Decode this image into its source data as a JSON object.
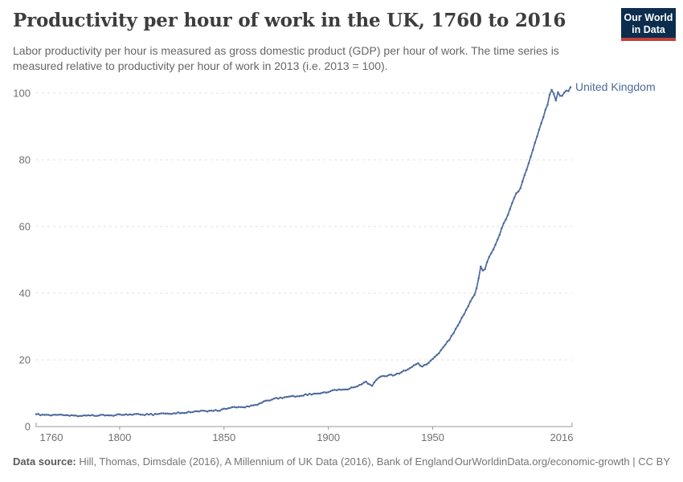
{
  "header": {
    "title": "Productivity per hour of work in the UK, 1760 to 2016",
    "logo_line1": "Our World",
    "logo_line2": "in Data"
  },
  "subtitle": "Labor productivity per hour is measured as gross domestic product (GDP) per hour of work. The time series is measured relative to productivity per hour of work in 2013 (i.e. 2013 = 100).",
  "chart_data": {
    "type": "line",
    "title": "Productivity per hour of work in the UK, 1760 to 2016",
    "xlabel": "",
    "ylabel": "",
    "xlim": [
      1760,
      2016
    ],
    "ylim": [
      0,
      100
    ],
    "x_ticks": [
      1760,
      1800,
      1850,
      1900,
      1950,
      2016
    ],
    "y_ticks": [
      0,
      20,
      40,
      60,
      80,
      100
    ],
    "grid": "horizontal-dashed",
    "legend": "end-of-line-label",
    "series": [
      {
        "name": "United Kingdom",
        "color": "#4C6A9C",
        "points": [
          [
            1760,
            3.7
          ],
          [
            1763,
            3.6
          ],
          [
            1766,
            3.5
          ],
          [
            1770,
            3.5
          ],
          [
            1774,
            3.4
          ],
          [
            1778,
            3.3
          ],
          [
            1782,
            3.2
          ],
          [
            1786,
            3.3
          ],
          [
            1790,
            3.3
          ],
          [
            1794,
            3.4
          ],
          [
            1798,
            3.4
          ],
          [
            1802,
            3.5
          ],
          [
            1806,
            3.5
          ],
          [
            1810,
            3.6
          ],
          [
            1814,
            3.6
          ],
          [
            1818,
            3.7
          ],
          [
            1822,
            3.9
          ],
          [
            1826,
            4.0
          ],
          [
            1830,
            4.1
          ],
          [
            1834,
            4.3
          ],
          [
            1838,
            4.5
          ],
          [
            1841,
            4.7
          ],
          [
            1844,
            4.8
          ],
          [
            1847,
            4.7
          ],
          [
            1850,
            5.4
          ],
          [
            1853,
            5.6
          ],
          [
            1856,
            5.7
          ],
          [
            1859,
            5.8
          ],
          [
            1862,
            6.0
          ],
          [
            1865,
            6.5
          ],
          [
            1868,
            7.1
          ],
          [
            1871,
            7.8
          ],
          [
            1874,
            8.4
          ],
          [
            1877,
            8.7
          ],
          [
            1880,
            8.9
          ],
          [
            1883,
            9.2
          ],
          [
            1886,
            9.1
          ],
          [
            1889,
            9.7
          ],
          [
            1892,
            9.6
          ],
          [
            1895,
            9.9
          ],
          [
            1898,
            10.3
          ],
          [
            1901,
            10.6
          ],
          [
            1904,
            10.9
          ],
          [
            1907,
            11.1
          ],
          [
            1910,
            11.3
          ],
          [
            1913,
            11.9
          ],
          [
            1915,
            12.5
          ],
          [
            1917,
            13.2
          ],
          [
            1918,
            13.5
          ],
          [
            1920,
            12.6
          ],
          [
            1921,
            12.2
          ],
          [
            1923,
            14.0
          ],
          [
            1925,
            15.0
          ],
          [
            1927,
            15.1
          ],
          [
            1929,
            15.5
          ],
          [
            1931,
            15.3
          ],
          [
            1933,
            15.9
          ],
          [
            1935,
            16.3
          ],
          [
            1937,
            16.8
          ],
          [
            1939,
            17.5
          ],
          [
            1941,
            18.4
          ],
          [
            1943,
            19.0
          ],
          [
            1945,
            18.0
          ],
          [
            1947,
            18.6
          ],
          [
            1949,
            19.8
          ],
          [
            1950,
            20.3
          ],
          [
            1952,
            21.5
          ],
          [
            1954,
            23.0
          ],
          [
            1956,
            24.5
          ],
          [
            1958,
            26.0
          ],
          [
            1960,
            28.0
          ],
          [
            1962,
            30.3
          ],
          [
            1964,
            32.7
          ],
          [
            1966,
            35.0
          ],
          [
            1968,
            37.5
          ],
          [
            1970,
            39.5
          ],
          [
            1971,
            41.5
          ],
          [
            1972,
            44.5
          ],
          [
            1973,
            48.0
          ],
          [
            1974,
            46.8
          ],
          [
            1975,
            47.2
          ],
          [
            1976,
            49.3
          ],
          [
            1978,
            52.0
          ],
          [
            1980,
            54.5
          ],
          [
            1982,
            57.5
          ],
          [
            1984,
            61.0
          ],
          [
            1986,
            63.5
          ],
          [
            1988,
            67.0
          ],
          [
            1990,
            70.0
          ],
          [
            1991,
            70.5
          ],
          [
            1992,
            71.5
          ],
          [
            1994,
            75.5
          ],
          [
            1996,
            79.0
          ],
          [
            1998,
            83.0
          ],
          [
            2000,
            87.0
          ],
          [
            2002,
            91.0
          ],
          [
            2004,
            95.0
          ],
          [
            2005,
            96.5
          ],
          [
            2006,
            99.5
          ],
          [
            2007,
            101.0
          ],
          [
            2008,
            99.8
          ],
          [
            2009,
            97.8
          ],
          [
            2010,
            100.3
          ],
          [
            2011,
            99.2
          ],
          [
            2012,
            99.2
          ],
          [
            2013,
            100.2
          ],
          [
            2014,
            100.8
          ],
          [
            2015,
            100.6
          ],
          [
            2016,
            101.8
          ]
        ]
      }
    ]
  },
  "footer": {
    "source_label": "Data source:",
    "source_text": "Hill, Thomas, Dimsdale (2016), A Millennium of UK Data (2016), Bank of England",
    "right_text": "OurWorldinData.org/economic-growth | CC BY"
  },
  "colors": {
    "accent": "#4C6A9C",
    "grid": "#e0e0e0",
    "axis": "#9a9a9a",
    "tick_label": "#707070",
    "title": "#3d3d3d",
    "subtitle": "#666666",
    "logo_bg": "#0d2d4e",
    "logo_red": "#c0403c",
    "footer_text": "#757575"
  }
}
